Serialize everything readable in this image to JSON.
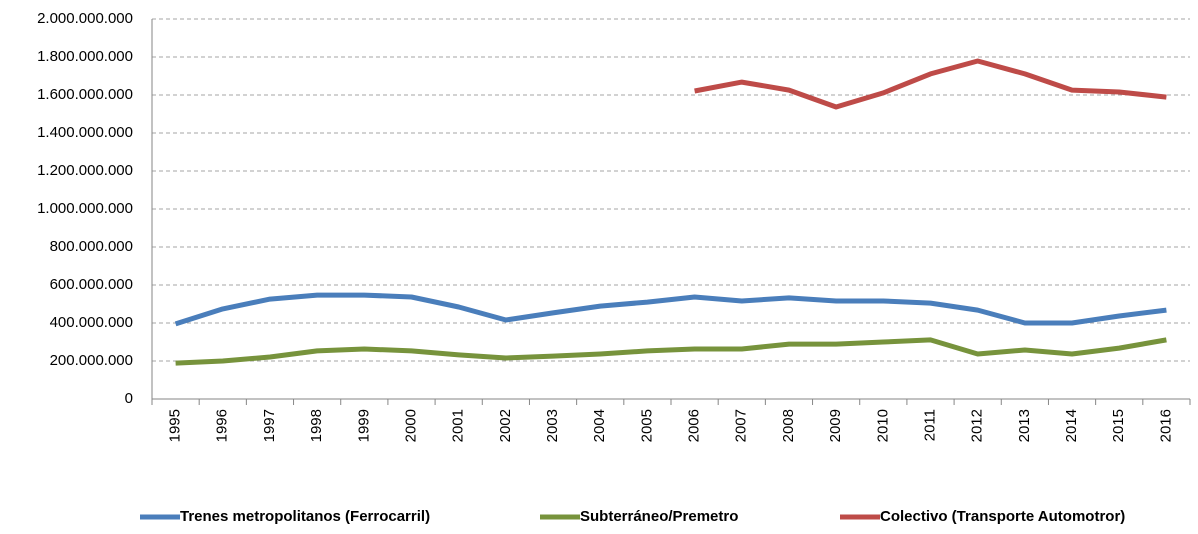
{
  "chart_data": {
    "type": "line",
    "categories": [
      "1995",
      "1996",
      "1997",
      "1998",
      "1999",
      "2000",
      "2001",
      "2002",
      "2003",
      "2004",
      "2005",
      "2006",
      "2007",
      "2008",
      "2009",
      "2010",
      "2011",
      "2012",
      "2013",
      "2014",
      "2015",
      "2016"
    ],
    "series": [
      {
        "name": "Trenes metropolitanos  (Ferrocarril)",
        "color": "#4a7ebb",
        "values": [
          395000000,
          474000000,
          526000000,
          547000000,
          547000000,
          537000000,
          484000000,
          416000000,
          453000000,
          489000000,
          510000000,
          537000000,
          516000000,
          532000000,
          516000000,
          516000000,
          505000000,
          468000000,
          400000000,
          400000000,
          437000000,
          468000000
        ]
      },
      {
        "name": "Subterráneo/Premetro",
        "color": "#77933c",
        "values": [
          189000000,
          200000000,
          221000000,
          253000000,
          263000000,
          253000000,
          232000000,
          216000000,
          226000000,
          237000000,
          253000000,
          263000000,
          263000000,
          289000000,
          289000000,
          300000000,
          311000000,
          237000000,
          258000000,
          237000000,
          268000000,
          311000000
        ]
      },
      {
        "name": "Colectivo (Transporte Automotror)",
        "color": "#be4b48",
        "values": [
          null,
          null,
          null,
          null,
          null,
          null,
          null,
          null,
          null,
          null,
          null,
          1621000000,
          1668000000,
          1626000000,
          1537000000,
          1611000000,
          1711000000,
          1779000000,
          1711000000,
          1626000000,
          1616000000,
          1589000000
        ]
      }
    ],
    "ylim": [
      0,
      2000000000
    ],
    "yticks": [
      0,
      {
        "value": 200000000,
        "label": "200.000.000"
      },
      {
        "value": 400000000,
        "label": "400.000.000"
      },
      {
        "value": 600000000,
        "label": "600.000.000"
      },
      {
        "value": 800000000,
        "label": "800.000.000"
      },
      {
        "value": 1000000000,
        "label": "1.000.000.000"
      },
      {
        "value": 1200000000,
        "label": "1.200.000.000"
      },
      {
        "value": 1400000000,
        "label": "1.400.000.000"
      },
      {
        "value": 1600000000,
        "label": "1.600.000.000"
      },
      {
        "value": 1800000000,
        "label": "1.800.000.000"
      },
      {
        "value": 2000000000,
        "label": "2.000.000.000"
      }
    ],
    "grid": true,
    "legend": "bottom"
  }
}
